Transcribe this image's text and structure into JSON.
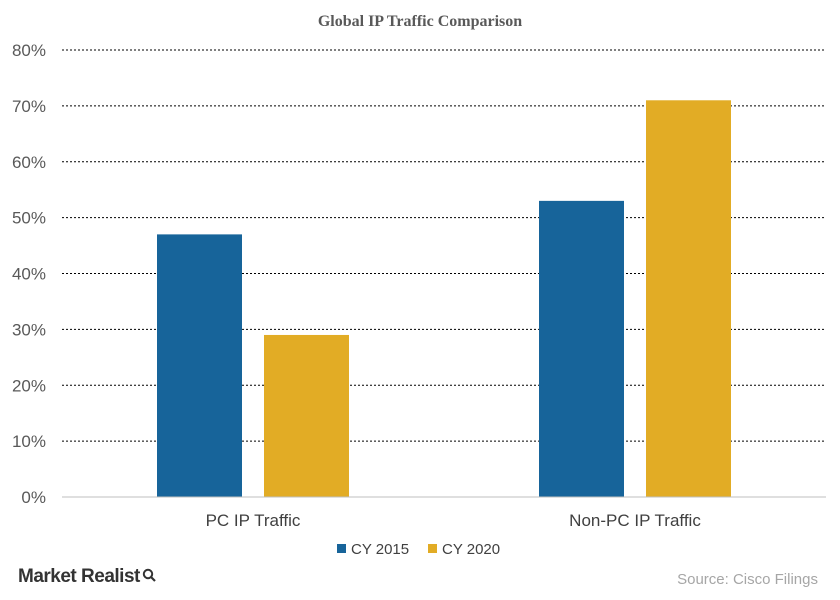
{
  "chart_data": {
    "type": "bar",
    "title": "Global IP Traffic Comparison",
    "categories": [
      "PC IP Traffic",
      "Non-PC IP Traffic"
    ],
    "series": [
      {
        "name": "CY 2015",
        "values": [
          47,
          53
        ],
        "color": "#17649a"
      },
      {
        "name": "CY 2020",
        "values": [
          29,
          71
        ],
        "color": "#e2ac25"
      }
    ],
    "yticks": [
      "0%",
      "10%",
      "20%",
      "30%",
      "40%",
      "50%",
      "60%",
      "70%",
      "80%"
    ],
    "ylim": [
      0,
      80
    ],
    "ytick_step": 10,
    "grid": true,
    "legend_position": "bottom"
  },
  "footer": {
    "brand": "Market Realist",
    "brand_icon": "magnifier-icon",
    "source": "Source:  Cisco Filings"
  }
}
